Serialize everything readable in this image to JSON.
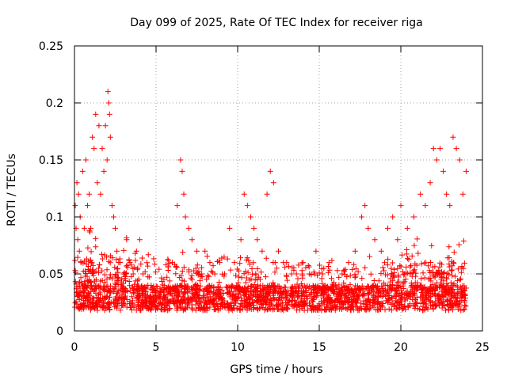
{
  "chart_data": {
    "type": "scatter",
    "title": "Day 099 of 2025, Rate Of TEC Index for receiver riga",
    "xlabel": "GPS time / hours",
    "ylabel": "ROTI / TECUs",
    "xlim": [
      0,
      25
    ],
    "ylim": [
      0,
      0.25
    ],
    "x_ticks": [
      "0",
      "5",
      "10",
      "15",
      "20",
      "25"
    ],
    "y_ticks": [
      "0",
      "0.05",
      "0.1",
      "0.15",
      "0.2",
      "0.25"
    ],
    "grid": true,
    "marker": "+",
    "color": "#ff0000",
    "series": [
      {
        "x": [
          0.05,
          0.1,
          0.15,
          0.2,
          0.25,
          0.3,
          0.35,
          0.4,
          0.5,
          0.6,
          0.7,
          0.8,
          0.9,
          1.0,
          1.1,
          1.2,
          1.3,
          1.4,
          1.5,
          1.6,
          1.7,
          1.8,
          1.9,
          2.0,
          2.05,
          2.1,
          2.15,
          2.2,
          2.3,
          2.4,
          2.5,
          2.6,
          2.8,
          3.0,
          3.2,
          3.4,
          3.6,
          3.8,
          4.0,
          4.2,
          4.5,
          5.0,
          5.5,
          6.0,
          6.3,
          6.5,
          6.6,
          6.7,
          6.8,
          7.0,
          7.2,
          7.5,
          7.8,
          8.0,
          8.3,
          8.6,
          8.9,
          9.2,
          9.5,
          9.8,
          10.2,
          10.4,
          10.6,
          10.8,
          11.0,
          11.2,
          11.5,
          11.8,
          12.0,
          12.2,
          12.5,
          12.8,
          13.0,
          13.3,
          13.6,
          14.0,
          14.4,
          14.8,
          15.2,
          15.6,
          16.0,
          16.4,
          16.8,
          17.2,
          17.6,
          17.8,
          18.0,
          18.4,
          18.8,
          19.2,
          19.5,
          19.8,
          20.0,
          20.4,
          20.8,
          21.2,
          21.5,
          21.8,
          22.0,
          22.2,
          22.4,
          22.6,
          22.8,
          23.0,
          23.2,
          23.4,
          23.6,
          23.8,
          24.0
        ],
        "y": [
          0.11,
          0.09,
          0.13,
          0.08,
          0.12,
          0.07,
          0.1,
          0.06,
          0.14,
          0.09,
          0.15,
          0.11,
          0.12,
          0.09,
          0.17,
          0.16,
          0.19,
          0.13,
          0.18,
          0.12,
          0.16,
          0.14,
          0.18,
          0.15,
          0.21,
          0.2,
          0.19,
          0.17,
          0.11,
          0.1,
          0.09,
          0.07,
          0.06,
          0.05,
          0.08,
          0.06,
          0.05,
          0.07,
          0.08,
          0.05,
          0.04,
          0.035,
          0.04,
          0.06,
          0.11,
          0.15,
          0.14,
          0.12,
          0.1,
          0.09,
          0.08,
          0.07,
          0.05,
          0.07,
          0.06,
          0.05,
          0.06,
          0.05,
          0.09,
          0.06,
          0.08,
          0.12,
          0.11,
          0.1,
          0.09,
          0.08,
          0.07,
          0.12,
          0.14,
          0.13,
          0.07,
          0.06,
          0.06,
          0.05,
          0.05,
          0.06,
          0.05,
          0.07,
          0.05,
          0.06,
          0.04,
          0.05,
          0.06,
          0.07,
          0.1,
          0.11,
          0.09,
          0.08,
          0.07,
          0.09,
          0.1,
          0.08,
          0.11,
          0.09,
          0.1,
          0.12,
          0.11,
          0.13,
          0.16,
          0.15,
          0.16,
          0.14,
          0.12,
          0.11,
          0.17,
          0.16,
          0.15,
          0.12,
          0.14
        ]
      }
    ]
  }
}
